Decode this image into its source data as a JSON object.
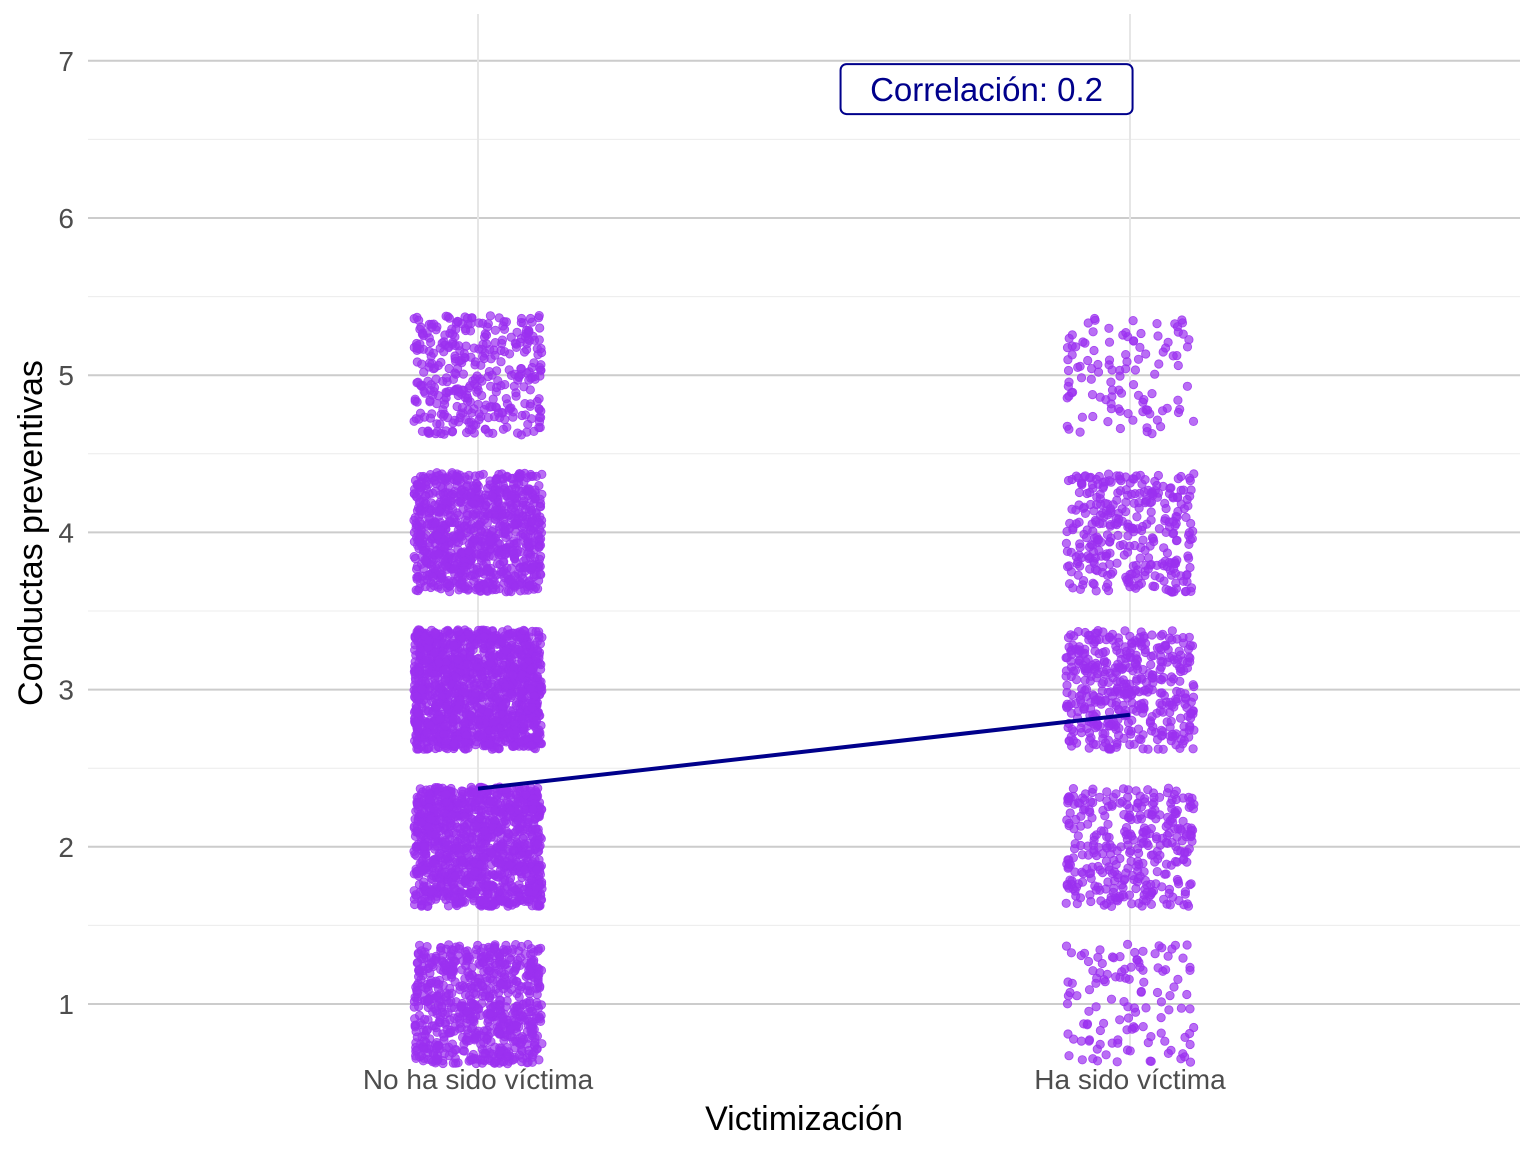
{
  "chart_data": {
    "type": "scatter",
    "title": "",
    "xlabel": "Victimización",
    "ylabel": "Conductas preventivas",
    "categories": [
      "No ha sido víctima",
      "Ha sido víctima"
    ],
    "y_ticks": [
      "1",
      "2",
      "3",
      "4",
      "5",
      "6",
      "7"
    ],
    "ylim": [
      0.8,
      7.3
    ],
    "grid": true,
    "jitter": true,
    "point_color": "#9b30f0",
    "line_color": "#00008b",
    "groups": [
      {
        "category": "No ha sido víctima",
        "levels": [
          {
            "y": 1,
            "count": 700
          },
          {
            "y": 2,
            "count": 1100
          },
          {
            "y": 3,
            "count": 1300
          },
          {
            "y": 4,
            "count": 900
          },
          {
            "y": 5,
            "count": 350
          }
        ]
      },
      {
        "category": "Ha sido víctima",
        "levels": [
          {
            "y": 1,
            "count": 120
          },
          {
            "y": 2,
            "count": 330
          },
          {
            "y": 3,
            "count": 430
          },
          {
            "y": 4,
            "count": 320
          },
          {
            "y": 5,
            "count": 110
          }
        ]
      }
    ],
    "trend_line": {
      "points": [
        {
          "x": "No ha sido víctima",
          "y": 2.37
        },
        {
          "x": "Ha sido víctima",
          "y": 2.84
        }
      ]
    },
    "annotation": {
      "text": "Correlación: 0.2",
      "x": 1.78,
      "y": 6.82,
      "color": "#00008b"
    }
  }
}
